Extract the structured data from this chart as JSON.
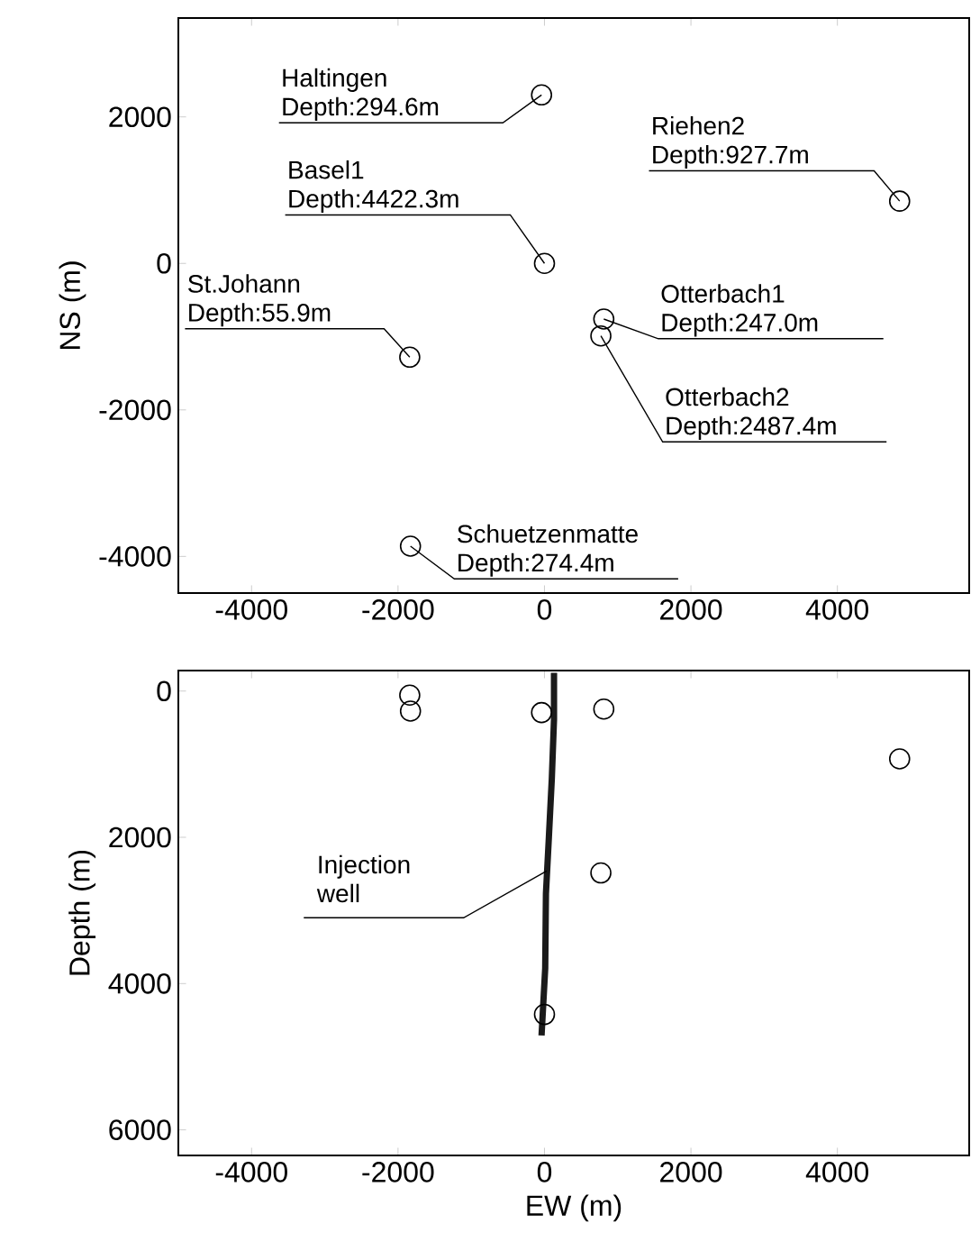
{
  "chart_data": [
    {
      "type": "scatter",
      "ylabel": "NS (m)",
      "xlim": [
        -5000,
        5800
      ],
      "ylim": [
        -4500,
        3350
      ],
      "xticks": [
        -4000,
        -2000,
        0,
        2000,
        4000
      ],
      "yticks": [
        -4000,
        -2000,
        0,
        2000
      ],
      "marker": "circle",
      "series": [
        {
          "x": [
            -40,
            0,
            4850,
            -1840,
            810,
            770,
            -1830
          ],
          "values": [
            2300,
            0,
            850,
            -1280,
            -760,
            -990,
            -3860
          ],
          "color": "#000000"
        }
      ],
      "annotations": [
        "Haltingen",
        {
          "text": "Depth:294.6m",
          "x": -40,
          "y": 2300
        },
        "Basel1",
        {
          "text": "Depth:4422.3m",
          "x": 0,
          "y": 0
        },
        "Riehen2",
        {
          "text": "Depth:927.7m",
          "x": 4850,
          "y": 850
        },
        "St.Johann",
        {
          "text": "Depth:55.9m",
          "x": -1840,
          "y": -1280
        },
        "Otterbach1",
        {
          "text": "Depth:247.0m",
          "x": 810,
          "y": -760
        },
        "Otterbach2",
        {
          "text": "Depth:2487.4m",
          "x": 770,
          "y": -990
        },
        "Schuetzenmatte",
        {
          "text": "Depth:274.4m",
          "x": -1830,
          "y": -3860
        }
      ]
    },
    {
      "type": "scatter",
      "xlabel": "EW (m)",
      "ylabel": "Depth (m)",
      "xlim": [
        -5000,
        5800
      ],
      "ylim": [
        6350,
        -280
      ],
      "xticks": [
        -4000,
        -2000,
        0,
        2000,
        4000
      ],
      "yticks": [
        0,
        2000,
        4000,
        6000
      ],
      "marker": "circle",
      "series": [
        {
          "type": "line",
          "marker": "none",
          "x": [
            130,
            130,
            100,
            60,
            20,
            10,
            -40
          ],
          "values": [
            -250,
            390,
            1200,
            2000,
            2770,
            3790,
            4710
          ],
          "color": "#1a1a1a"
        },
        {
          "x": [
            -40,
            0,
            4850,
            -1840,
            810,
            770,
            -1830
          ],
          "values": [
            294.6,
            4422.3,
            927.7,
            55.9,
            247.0,
            2487.4,
            274.4
          ],
          "color": "#000000"
        }
      ],
      "annotations": [
        {
          "text": "Injection well",
          "x": 30,
          "y": 2460
        }
      ]
    }
  ]
}
